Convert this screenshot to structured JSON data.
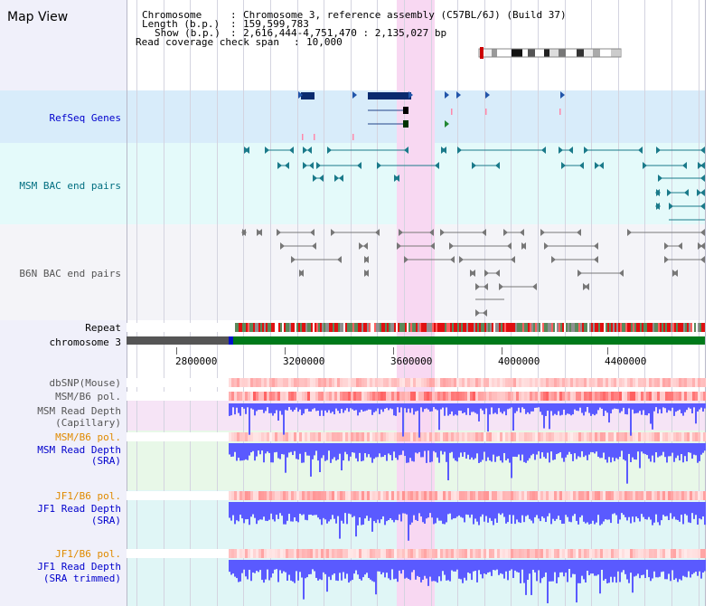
{
  "app": {
    "title": "Map View"
  },
  "header": {
    "chromosome_key": "Chromosome",
    "chromosome_val": "Chromosome 3, reference assembly (C57BL/6J) (Build 37)",
    "length_key": "Length (b.p.)",
    "length_val": "159,599,783",
    "show_key": "Show (b.p.)",
    "show_val": "2,616,444-4,751,470 : 2,135,027 bp",
    "span_key": "Read coverage check span",
    "span_val": "10,000"
  },
  "tracks": {
    "refseq": "RefSeq Genes",
    "msm_bac": "MSM BAC end pairs",
    "b6n_bac": "B6N BAC end pairs",
    "repeat": "Repeat",
    "chromosome": "chromosome 3",
    "dbsnp": "dbSNP(Mouse)",
    "msm_b6_pol_1": "MSM/B6 pol.",
    "msm_depth_cap_1": "MSM Read Depth",
    "msm_depth_cap_2": "(Capillary)",
    "msm_b6_pol_2": "MSM/B6 pol.",
    "msm_depth_sra_1": "MSM Read Depth",
    "msm_depth_sra_2": "(SRA)",
    "jf1_b6_pol_1": "JF1/B6 pol.",
    "jf1_depth_sra_1": "JF1 Read Depth",
    "jf1_depth_sra_2": "(SRA)",
    "jf1_b6_pol_2": "JF1/B6 pol.",
    "jf1_depth_trim_1": "JF1 Read Depth",
    "jf1_depth_trim_2": "(SRA trimmed)"
  },
  "ruler": {
    "ticks": [
      "2800000",
      "3200000",
      "3600000",
      "4000000",
      "4400000"
    ]
  },
  "colors": {
    "sidebar": "#f0f0fa",
    "refseq_band": "#d8ecfa",
    "msm_bac_band": "#e4fafa",
    "b6n_bac_band": "#f4f4f8",
    "highlight": "#f8d8f2",
    "depth_bar": "#5a5aff",
    "pol_high": "#e03030",
    "chrom_green": "#007a1a"
  }
}
